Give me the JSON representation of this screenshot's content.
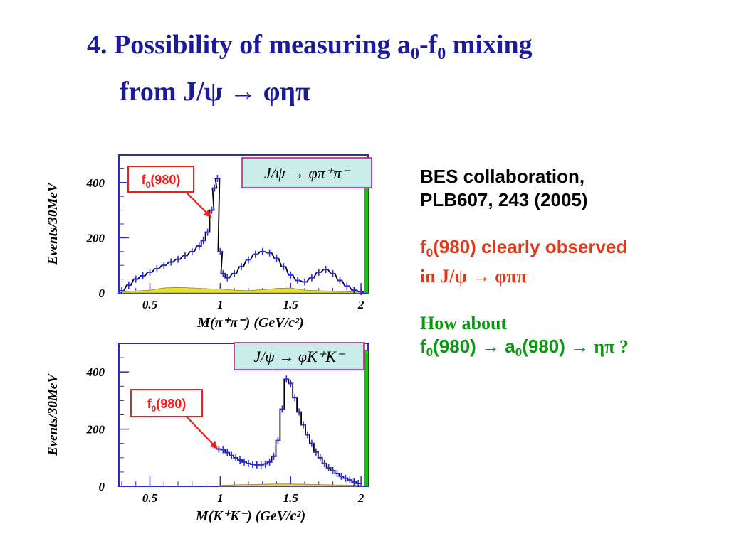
{
  "slide": {
    "number": "4.",
    "title_line1": "Possibility of measuring a",
    "title_sub1": "0",
    "title_mid": "-f",
    "title_sub2": "0",
    "title_end": " mixing",
    "title_line2": "from J/ψ → φηπ"
  },
  "side": {
    "ref_line1": "BES collaboration,",
    "ref_line2": "PLB607, 243 (2005)",
    "obs_pre": "f",
    "obs_sub": "0",
    "obs_text": "(980) clearly observed",
    "obs_line2": "in J/ψ → φππ",
    "q_line1": "How about",
    "q_f": "f",
    "q_f_sub": "0",
    "q_mid1": "(980) → a",
    "q_a_sub": "0",
    "q_mid2": "(980) → ",
    "q_end": "ηπ  ?"
  },
  "chart_data": [
    {
      "type": "line",
      "reaction": "J/ψ → φπ⁺π⁻",
      "annotation": "f0(980)",
      "annotation_sub": "0",
      "ylabel": "Events/30MeV",
      "xlabel": "M(π⁺π⁻) (GeV/c²)",
      "xlim": [
        0.28,
        2.05
      ],
      "ylim": [
        0,
        500
      ],
      "xticks": [
        "0.5",
        "1",
        "1.5",
        "2"
      ],
      "yticks": [
        "0",
        "200",
        "400"
      ],
      "series": [
        {
          "kind": "data-histogram",
          "x": [
            0.3,
            0.35,
            0.4,
            0.45,
            0.5,
            0.55,
            0.6,
            0.65,
            0.7,
            0.75,
            0.8,
            0.85,
            0.88,
            0.91,
            0.94,
            0.96,
            0.98,
            1.0,
            1.02,
            1.05,
            1.1,
            1.15,
            1.2,
            1.25,
            1.3,
            1.35,
            1.4,
            1.45,
            1.5,
            1.55,
            1.6,
            1.65,
            1.7,
            1.75,
            1.8,
            1.85,
            1.9,
            1.95,
            2.0
          ],
          "values": [
            8,
            28,
            50,
            62,
            75,
            88,
            100,
            112,
            122,
            135,
            150,
            170,
            190,
            220,
            300,
            380,
            415,
            150,
            70,
            55,
            70,
            95,
            120,
            140,
            150,
            145,
            125,
            95,
            65,
            45,
            40,
            55,
            75,
            85,
            70,
            45,
            25,
            10,
            5
          ]
        },
        {
          "kind": "background",
          "x": [
            0.3,
            0.5,
            0.6,
            0.7,
            0.8,
            0.9,
            1.0,
            1.1,
            1.2,
            1.3,
            1.4,
            1.5,
            1.6,
            1.7,
            1.8,
            1.9,
            2.0
          ],
          "values": [
            4,
            10,
            18,
            20,
            18,
            15,
            14,
            10,
            8,
            12,
            16,
            18,
            10,
            8,
            6,
            4,
            3
          ]
        }
      ]
    },
    {
      "type": "line",
      "reaction": "J/ψ → φK⁺K⁻",
      "annotation": "f0(980)",
      "annotation_sub": "0",
      "ylabel": "Events/30MeV",
      "xlabel": "M(K⁺K⁻) (GeV/c²)",
      "xlim": [
        0.28,
        2.05
      ],
      "ylim": [
        0,
        500
      ],
      "xticks": [
        "0.5",
        "1",
        "1.5",
        "2"
      ],
      "yticks": [
        "0",
        "200",
        "400"
      ],
      "series": [
        {
          "kind": "data-histogram",
          "x": [
            0.99,
            1.02,
            1.05,
            1.08,
            1.11,
            1.14,
            1.17,
            1.2,
            1.23,
            1.26,
            1.29,
            1.32,
            1.35,
            1.38,
            1.41,
            1.44,
            1.47,
            1.5,
            1.53,
            1.56,
            1.59,
            1.62,
            1.65,
            1.68,
            1.71,
            1.74,
            1.77,
            1.8,
            1.83,
            1.86,
            1.89,
            1.92,
            1.95,
            1.98
          ],
          "values": [
            130,
            128,
            118,
            108,
            100,
            92,
            85,
            80,
            77,
            75,
            75,
            78,
            85,
            105,
            160,
            270,
            375,
            360,
            310,
            260,
            215,
            180,
            150,
            120,
            100,
            80,
            65,
            55,
            45,
            35,
            28,
            22,
            15,
            10
          ]
        },
        {
          "kind": "background",
          "x": [
            0.99,
            1.1,
            1.2,
            1.3,
            1.4,
            1.5,
            1.6,
            1.7,
            1.8,
            1.9,
            2.0
          ],
          "values": [
            3,
            5,
            6,
            7,
            8,
            8,
            7,
            6,
            5,
            4,
            3
          ]
        }
      ]
    }
  ],
  "colors": {
    "title": "#1a1a9a",
    "arrow": "#e8201e",
    "annotation": "#e8201e",
    "points": "#2a2ae0",
    "axis": "#2a2ad0",
    "label": "#000000",
    "background": "#e8e020",
    "box_fill": "#c9ede9",
    "box_border": "#c0208a",
    "green_bar": "#18c018"
  }
}
